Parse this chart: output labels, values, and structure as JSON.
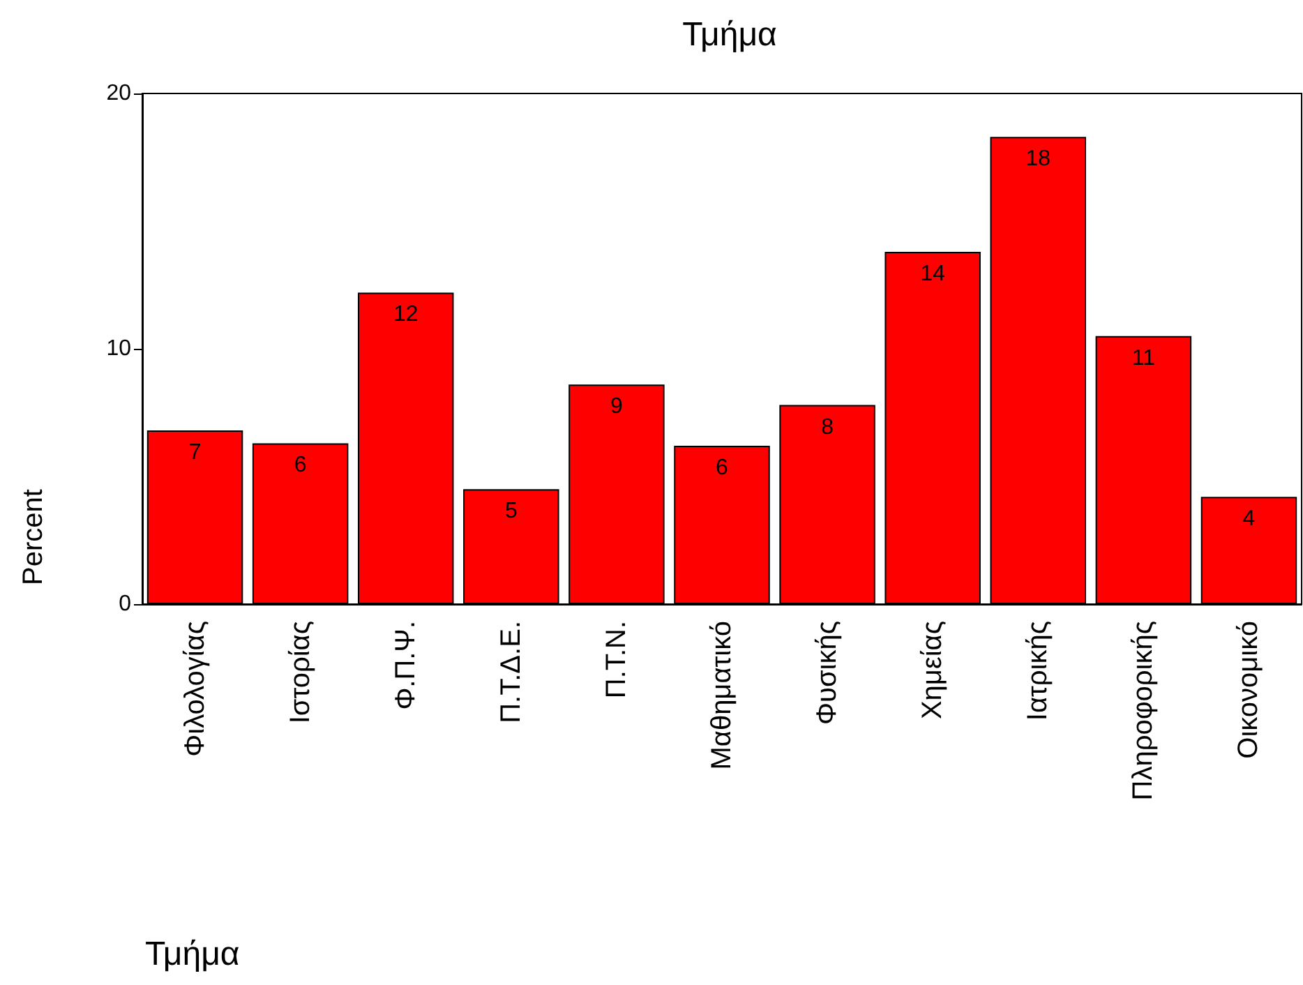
{
  "chart_data": {
    "type": "bar",
    "title": "Τμήμα",
    "xlabel": "Τμήμα",
    "ylabel": "Percent",
    "categories": [
      "Φιλολογίας",
      "Ιστορίας",
      "Φ.Π.Ψ.",
      "Π.Τ.Δ.Ε.",
      "Π.Τ.Ν.",
      "Μαθηματικό",
      "Φυσικής",
      "Χημείας",
      "Ιατρικής",
      "Πληροφορικής",
      "Οικονομικό"
    ],
    "values": [
      6.8,
      6.3,
      12.2,
      4.5,
      8.6,
      6.2,
      7.8,
      13.8,
      18.3,
      10.5,
      4.2
    ],
    "value_labels": [
      "7",
      "6",
      "12",
      "5",
      "9",
      "6",
      "8",
      "14",
      "18",
      "11",
      "4"
    ],
    "color": "#ff0000",
    "ylim": [
      0,
      20
    ],
    "yticks": [
      0,
      10,
      20
    ],
    "grid": false
  }
}
